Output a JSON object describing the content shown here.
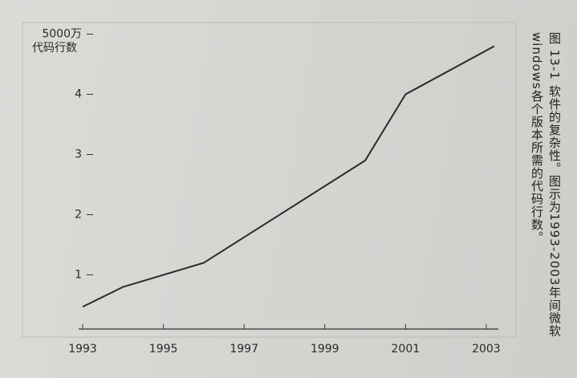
{
  "chart_data": {
    "type": "line",
    "y_label": "代码行数",
    "caption": "图 13-1 软件的复杂性。图示为1993-2003年间微软windows各个版本所需的代码行数。",
    "x": [
      1993,
      1994,
      1996,
      2000,
      2001,
      2003.2
    ],
    "values": [
      0.47,
      0.8,
      1.2,
      2.9,
      4,
      4.8
    ],
    "color": "#2b2b2b",
    "xlim": [
      1992.9,
      2003.3
    ],
    "xticks": [
      1993,
      1995,
      1997,
      1999,
      2001,
      2003
    ],
    "ylim": [
      0.1,
      5.1
    ],
    "yticks": [
      1,
      2,
      3,
      4,
      {
        "value": 5,
        "label": "5000万"
      }
    ],
    "grid": false
  }
}
